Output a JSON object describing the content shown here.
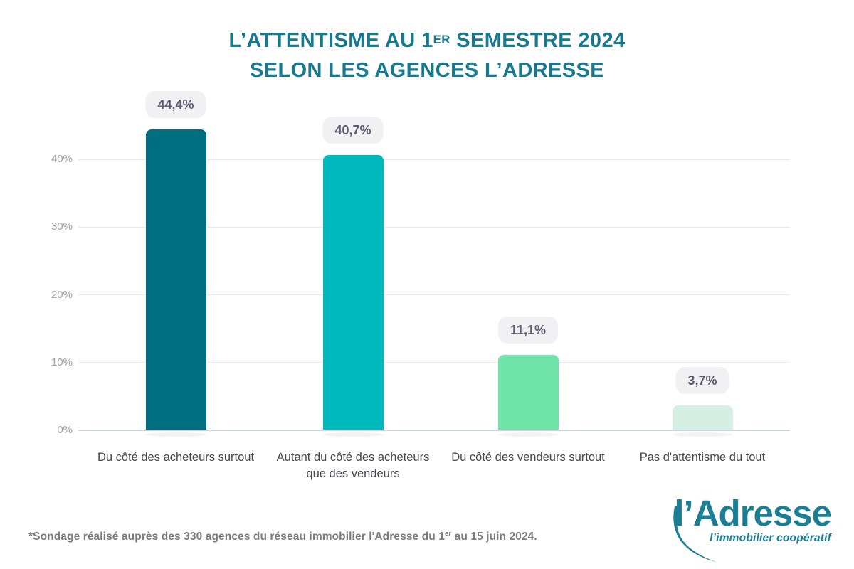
{
  "title": {
    "line1_prefix": "L’ATTENTISME AU 1",
    "line1_superscript": "ER",
    "line1_suffix": " SEMESTRE 2024",
    "line2": "SELON LES AGENCES L’ADRESSE"
  },
  "chart_data": {
    "type": "bar",
    "title": "L’attentisme au 1er semestre 2024 selon les agences l’Adresse",
    "categories": [
      "Du côté des acheteurs surtout",
      "Autant du côté des acheteurs que des vendeurs",
      "Du côté des vendeurs surtout",
      "Pas d'attentisme du tout"
    ],
    "values": [
      44.4,
      40.7,
      11.1,
      3.7
    ],
    "value_labels": [
      "44,4%",
      "40,7%",
      "11,1%",
      "3,7%"
    ],
    "bar_colors": [
      "#006F80",
      "#00B9BD",
      "#70E3A9",
      "#D5EFE2"
    ],
    "yticks": [
      {
        "label": "0%",
        "value": 0
      },
      {
        "label": "10%",
        "value": 10
      },
      {
        "label": "20%",
        "value": 20
      },
      {
        "label": "30%",
        "value": 30
      },
      {
        "label": "40%",
        "value": 40
      }
    ],
    "ylim": [
      0,
      47
    ],
    "xlabel": "",
    "ylabel": "",
    "grid": true,
    "legend": "none"
  },
  "footnote": {
    "prefix": "*Sondage réalisé auprès des 330 agences du réseau immobilier l'Adresse du 1",
    "superscript": "er",
    "suffix": " au 15 juin 2024."
  },
  "logo": {
    "wordmark": "l’Adresse",
    "tagline": "l’immobilier coopératif",
    "color": "#1B7E95"
  }
}
